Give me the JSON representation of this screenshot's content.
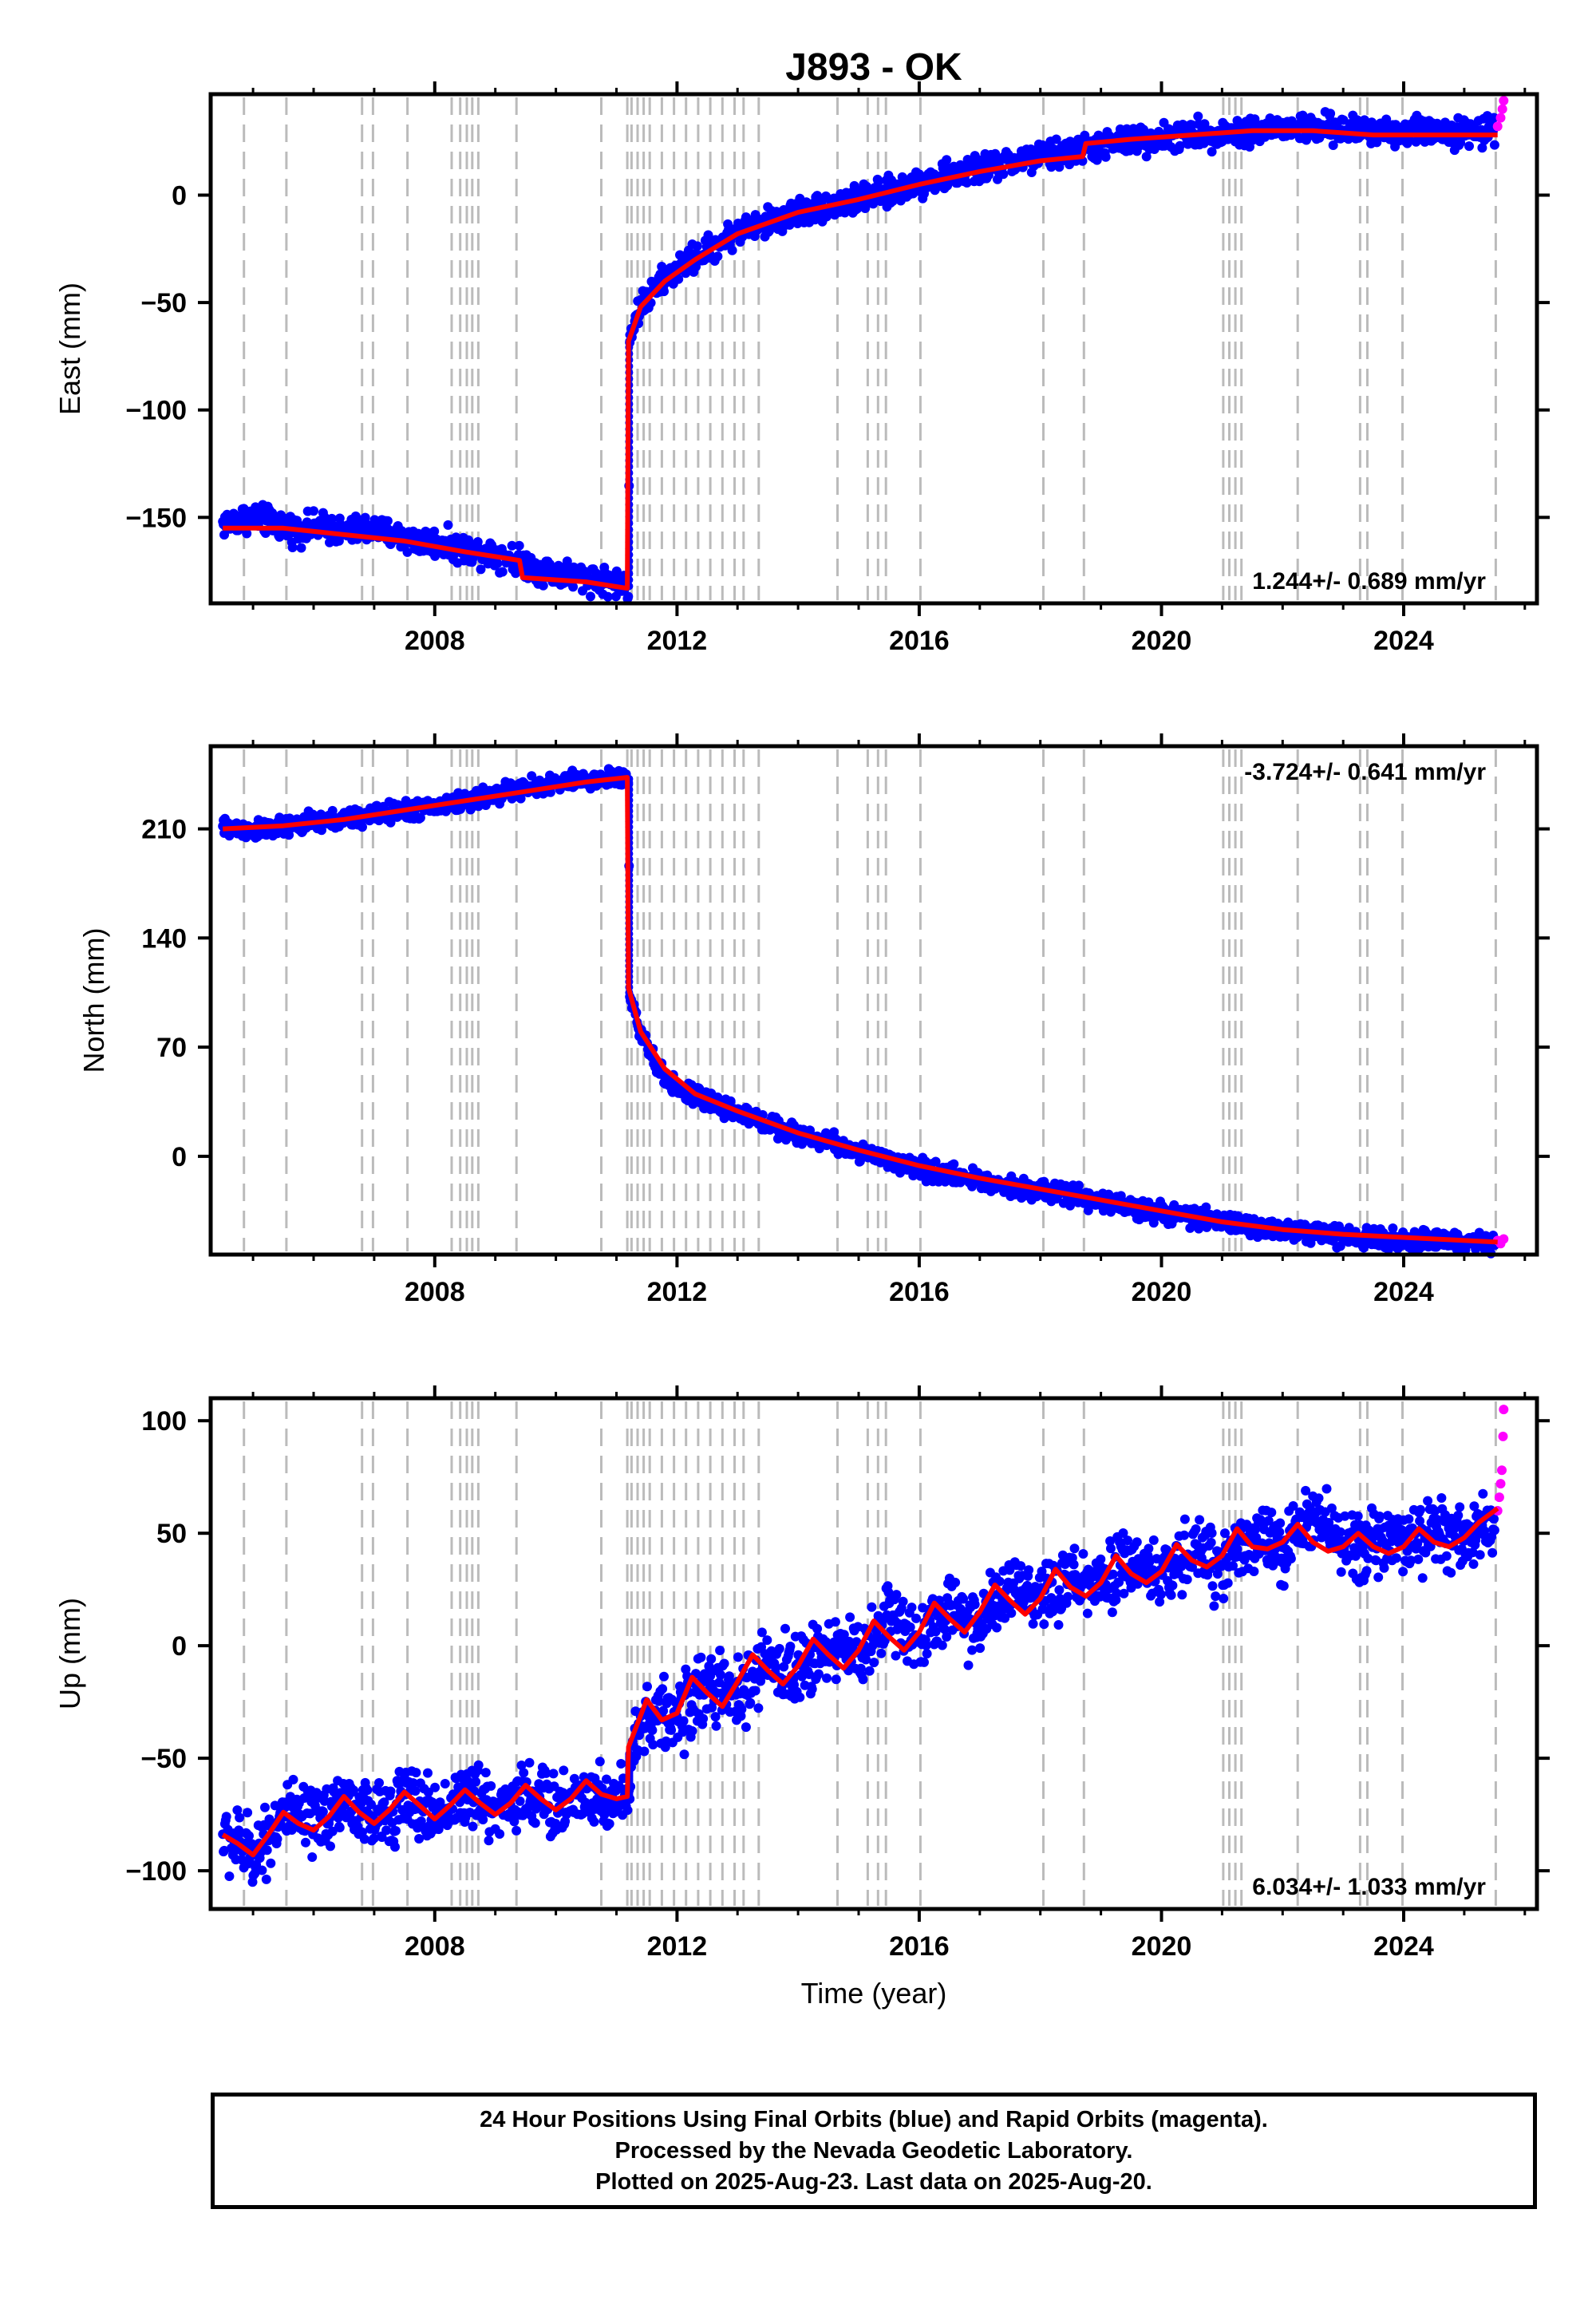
{
  "colors": {
    "final_orbits": "#0000ff",
    "rapid_orbits": "#ff00ff",
    "model_fit": "#ff0000",
    "event_lines": "#bbbbbb",
    "axes": "#000000"
  },
  "chart_data": [
    {
      "type": "scatter",
      "title": "J893 - OK",
      "xlabel": "",
      "ylabel": "East (mm)",
      "xlim": [
        2004.3,
        2026.2
      ],
      "ylim": [
        -190,
        47
      ],
      "x_ticks": [
        2008,
        2012,
        2016,
        2020,
        2024
      ],
      "y_ticks": [
        -150,
        -100,
        -50,
        0
      ],
      "rate_label": "1.244+/- 0.689 mm/yr",
      "rate_position": "bottom-right",
      "grid": false,
      "event_lines_x": [
        2004.85,
        2005.55,
        2006.8,
        2006.98,
        2007.55,
        2008.28,
        2008.42,
        2008.53,
        2008.62,
        2008.72,
        2009.35,
        2010.75,
        2011.18,
        2011.25,
        2011.35,
        2011.45,
        2011.55,
        2011.75,
        2011.95,
        2012.15,
        2012.35,
        2012.55,
        2012.75,
        2012.95,
        2013.1,
        2013.35,
        2014.65,
        2015.15,
        2015.32,
        2015.45,
        2016.02,
        2018.05,
        2018.72,
        2021.02,
        2021.12,
        2021.22,
        2021.32,
        2022.25,
        2023.28,
        2023.4,
        2023.98,
        2025.52
      ],
      "series": [
        {
          "role": "final_orbits",
          "x": [
            2004.5,
            2004.9,
            2005.3,
            2005.7,
            2006.1,
            2006.5,
            2006.9,
            2007.3,
            2007.7,
            2008.1,
            2008.5,
            2008.9,
            2009.3,
            2009.7,
            2010.1,
            2010.5,
            2010.9,
            2011.2,
            2011.22,
            2011.4,
            2011.7,
            2012.0,
            2012.5,
            2013.0,
            2013.5,
            2014.0,
            2014.5,
            2015.0,
            2015.5,
            2016.0,
            2016.5,
            2017.0,
            2017.5,
            2018.0,
            2018.5,
            2019.0,
            2019.5,
            2020.0,
            2020.5,
            2021.0,
            2021.5,
            2022.0,
            2022.5,
            2023.0,
            2023.5,
            2024.0,
            2024.5,
            2025.0,
            2025.5
          ],
          "values": [
            -153,
            -150,
            -152,
            -156,
            -154,
            -157,
            -155,
            -158,
            -161,
            -162,
            -165,
            -166,
            -169,
            -174,
            -176,
            -178,
            -180,
            -182,
            -65,
            -52,
            -42,
            -34,
            -26,
            -17,
            -13,
            -8,
            -5,
            -2,
            1,
            6,
            9,
            12,
            15,
            18,
            20,
            23,
            25,
            27,
            28,
            29,
            30,
            31,
            31,
            30,
            30,
            30,
            30,
            29,
            30
          ]
        },
        {
          "role": "rapid_orbits",
          "x": [
            2025.55,
            2025.6,
            2025.63,
            2025.65
          ],
          "values": [
            32,
            36,
            40,
            44
          ]
        }
      ],
      "model_fit": {
        "x": [
          2004.5,
          2005.5,
          2006.5,
          2007.5,
          2008.5,
          2009.4,
          2009.45,
          2010.5,
          2011.18,
          2011.2,
          2011.4,
          2011.8,
          2012.3,
          2013.0,
          2014.0,
          2015.0,
          2016.0,
          2017.0,
          2018.0,
          2018.7,
          2018.75,
          2019.5,
          2020.5,
          2021.5,
          2022.5,
          2023.5,
          2024.5,
          2025.55
        ],
        "values": [
          -155,
          -155,
          -158,
          -161,
          -166,
          -170,
          -178,
          -180,
          -183,
          -68,
          -52,
          -40,
          -30,
          -18,
          -8,
          -2,
          5,
          11,
          16,
          18,
          24,
          26,
          28,
          30,
          30,
          28,
          28,
          28
        ]
      }
    },
    {
      "type": "scatter",
      "xlabel": "",
      "ylabel": "North (mm)",
      "xlim": [
        2004.3,
        2026.2
      ],
      "ylim": [
        -63,
        263
      ],
      "x_ticks": [
        2008,
        2012,
        2016,
        2020,
        2024
      ],
      "y_ticks": [
        0,
        70,
        140,
        210
      ],
      "rate_label": "-3.724+/- 0.641 mm/yr",
      "rate_position": "top-right",
      "grid": false,
      "event_lines_x": [
        2004.85,
        2005.55,
        2006.8,
        2006.98,
        2007.55,
        2008.28,
        2008.42,
        2008.53,
        2008.62,
        2008.72,
        2009.35,
        2010.75,
        2011.18,
        2011.25,
        2011.35,
        2011.45,
        2011.55,
        2011.75,
        2011.95,
        2012.15,
        2012.35,
        2012.55,
        2012.75,
        2012.95,
        2013.1,
        2013.35,
        2014.65,
        2015.15,
        2015.32,
        2015.45,
        2016.02,
        2018.05,
        2018.72,
        2021.02,
        2021.12,
        2021.22,
        2021.32,
        2022.25,
        2023.28,
        2023.4,
        2023.98,
        2025.52
      ],
      "series": [
        {
          "role": "final_orbits",
          "x": [
            2004.5,
            2005.0,
            2005.5,
            2006.0,
            2006.5,
            2007.0,
            2007.5,
            2008.0,
            2008.5,
            2009.0,
            2009.5,
            2010.0,
            2010.5,
            2011.0,
            2011.2,
            2011.22,
            2011.4,
            2011.7,
            2012.0,
            2012.5,
            2013.0,
            2013.5,
            2014.0,
            2014.5,
            2015.0,
            2015.5,
            2016.0,
            2016.5,
            2017.0,
            2017.5,
            2018.0,
            2018.5,
            2019.0,
            2019.5,
            2020.0,
            2020.5,
            2021.0,
            2021.5,
            2022.0,
            2022.5,
            2023.0,
            2023.5,
            2024.0,
            2024.5,
            2025.0,
            2025.5
          ],
          "values": [
            211,
            209,
            211,
            214,
            216,
            219,
            222,
            224,
            228,
            232,
            236,
            239,
            241,
            243,
            242,
            105,
            78,
            55,
            44,
            35,
            28,
            21,
            14,
            9,
            3,
            -3,
            -8,
            -12,
            -15,
            -19,
            -22,
            -25,
            -29,
            -33,
            -36,
            -39,
            -42,
            -45,
            -48,
            -49,
            -51,
            -52,
            -53,
            -54,
            -55,
            -56
          ]
        },
        {
          "role": "rapid_orbits",
          "x": [
            2025.55,
            2025.6,
            2025.65
          ],
          "values": [
            -54,
            -56,
            -53
          ]
        }
      ],
      "model_fit": {
        "x": [
          2004.5,
          2005.5,
          2006.5,
          2007.5,
          2008.5,
          2009.5,
          2010.5,
          2011.18,
          2011.2,
          2011.4,
          2011.8,
          2012.3,
          2013.0,
          2014.0,
          2015.0,
          2016.0,
          2017.0,
          2018.0,
          2019.0,
          2020.0,
          2021.0,
          2022.0,
          2023.0,
          2024.0,
          2025.55
        ],
        "values": [
          210,
          212,
          216,
          222,
          228,
          234,
          240,
          243,
          108,
          80,
          56,
          40,
          29,
          15,
          4,
          -6,
          -14,
          -21,
          -28,
          -35,
          -42,
          -47,
          -50,
          -52,
          -55
        ]
      }
    },
    {
      "type": "scatter",
      "xlabel": "Time (year)",
      "ylabel": "Up (mm)",
      "xlim": [
        2004.3,
        2026.2
      ],
      "ylim": [
        -117,
        110
      ],
      "x_ticks": [
        2008,
        2012,
        2016,
        2020,
        2024
      ],
      "y_ticks": [
        -100,
        -50,
        0,
        50,
        100
      ],
      "rate_label": "6.034+/- 1.033 mm/yr",
      "rate_position": "bottom-right",
      "grid": false,
      "event_lines_x": [
        2004.85,
        2005.55,
        2006.8,
        2006.98,
        2007.55,
        2008.28,
        2008.42,
        2008.53,
        2008.62,
        2008.72,
        2009.35,
        2010.75,
        2011.18,
        2011.25,
        2011.35,
        2011.45,
        2011.55,
        2011.75,
        2011.95,
        2012.15,
        2012.35,
        2012.55,
        2012.75,
        2012.95,
        2013.1,
        2013.35,
        2014.65,
        2015.15,
        2015.32,
        2015.45,
        2016.02,
        2018.05,
        2018.72,
        2021.02,
        2021.12,
        2021.22,
        2021.32,
        2022.25,
        2023.28,
        2023.4,
        2023.98,
        2025.52
      ],
      "series": [
        {
          "role": "final_orbits",
          "x": [
            2004.5,
            2005.0,
            2005.5,
            2006.0,
            2006.5,
            2007.0,
            2007.5,
            2008.0,
            2008.5,
            2009.0,
            2009.5,
            2010.0,
            2010.5,
            2011.0,
            2011.2,
            2011.22,
            2011.5,
            2012.0,
            2012.5,
            2013.0,
            2013.5,
            2014.0,
            2014.5,
            2015.0,
            2015.5,
            2016.0,
            2016.5,
            2017.0,
            2017.5,
            2018.0,
            2018.5,
            2019.0,
            2019.5,
            2020.0,
            2020.5,
            2021.0,
            2021.5,
            2022.0,
            2022.5,
            2023.0,
            2023.5,
            2024.0,
            2024.5,
            2025.0,
            2025.5
          ],
          "values": [
            -85,
            -92,
            -75,
            -80,
            -68,
            -78,
            -68,
            -75,
            -66,
            -72,
            -65,
            -72,
            -65,
            -70,
            -67,
            -48,
            -30,
            -32,
            -17,
            -24,
            -8,
            -12,
            1,
            -5,
            14,
            4,
            16,
            10,
            25,
            18,
            30,
            25,
            38,
            30,
            42,
            37,
            50,
            42,
            58,
            44,
            48,
            43,
            52,
            47,
            56
          ]
        },
        {
          "role": "rapid_orbits",
          "x": [
            2025.55,
            2025.58,
            2025.6,
            2025.62,
            2025.64,
            2025.65
          ],
          "values": [
            60,
            66,
            72,
            78,
            93,
            105
          ]
        }
      ],
      "model_fit": {
        "x": [
          2004.5,
          2004.75,
          2005.0,
          2005.25,
          2005.5,
          2005.75,
          2006.0,
          2006.25,
          2006.5,
          2006.75,
          2007.0,
          2007.25,
          2007.5,
          2007.75,
          2008.0,
          2008.25,
          2008.5,
          2008.75,
          2009.0,
          2009.25,
          2009.5,
          2009.75,
          2010.0,
          2010.25,
          2010.5,
          2010.75,
          2011.0,
          2011.18,
          2011.2,
          2011.5,
          2011.75,
          2012.0,
          2012.25,
          2012.5,
          2012.75,
          2013.0,
          2013.25,
          2013.5,
          2013.75,
          2014.0,
          2014.25,
          2014.5,
          2014.75,
          2015.0,
          2015.25,
          2015.5,
          2015.75,
          2016.0,
          2016.25,
          2016.5,
          2016.75,
          2017.0,
          2017.25,
          2017.5,
          2017.75,
          2018.0,
          2018.25,
          2018.5,
          2018.75,
          2019.0,
          2019.25,
          2019.5,
          2019.75,
          2020.0,
          2020.25,
          2020.5,
          2020.75,
          2021.0,
          2021.25,
          2021.5,
          2021.75,
          2022.0,
          2022.25,
          2022.5,
          2022.75,
          2023.0,
          2023.25,
          2023.5,
          2023.75,
          2024.0,
          2024.25,
          2024.5,
          2024.75,
          2025.0,
          2025.25,
          2025.55
        ],
        "values": [
          -84,
          -88,
          -93,
          -84,
          -74,
          -79,
          -82,
          -76,
          -67,
          -74,
          -79,
          -73,
          -65,
          -71,
          -77,
          -71,
          -64,
          -70,
          -75,
          -70,
          -62,
          -68,
          -73,
          -68,
          -60,
          -66,
          -68,
          -67,
          -45,
          -24,
          -33,
          -30,
          -14,
          -21,
          -27,
          -16,
          -4,
          -11,
          -17,
          -9,
          3,
          -4,
          -10,
          -2,
          11,
          4,
          -2,
          6,
          19,
          12,
          6,
          15,
          27,
          20,
          14,
          21,
          34,
          26,
          22,
          28,
          40,
          32,
          28,
          33,
          45,
          38,
          35,
          40,
          52,
          44,
          43,
          46,
          54,
          46,
          42,
          44,
          50,
          44,
          41,
          44,
          52,
          46,
          44,
          48,
          55,
          61
        ]
      }
    }
  ],
  "footer": {
    "line1": "24 Hour Positions Using Final Orbits (blue) and Rapid Orbits (magenta).",
    "line2": "Processed by the Nevada Geodetic Laboratory.",
    "line3": "Plotted on 2025-Aug-23. Last data on 2025-Aug-20."
  }
}
